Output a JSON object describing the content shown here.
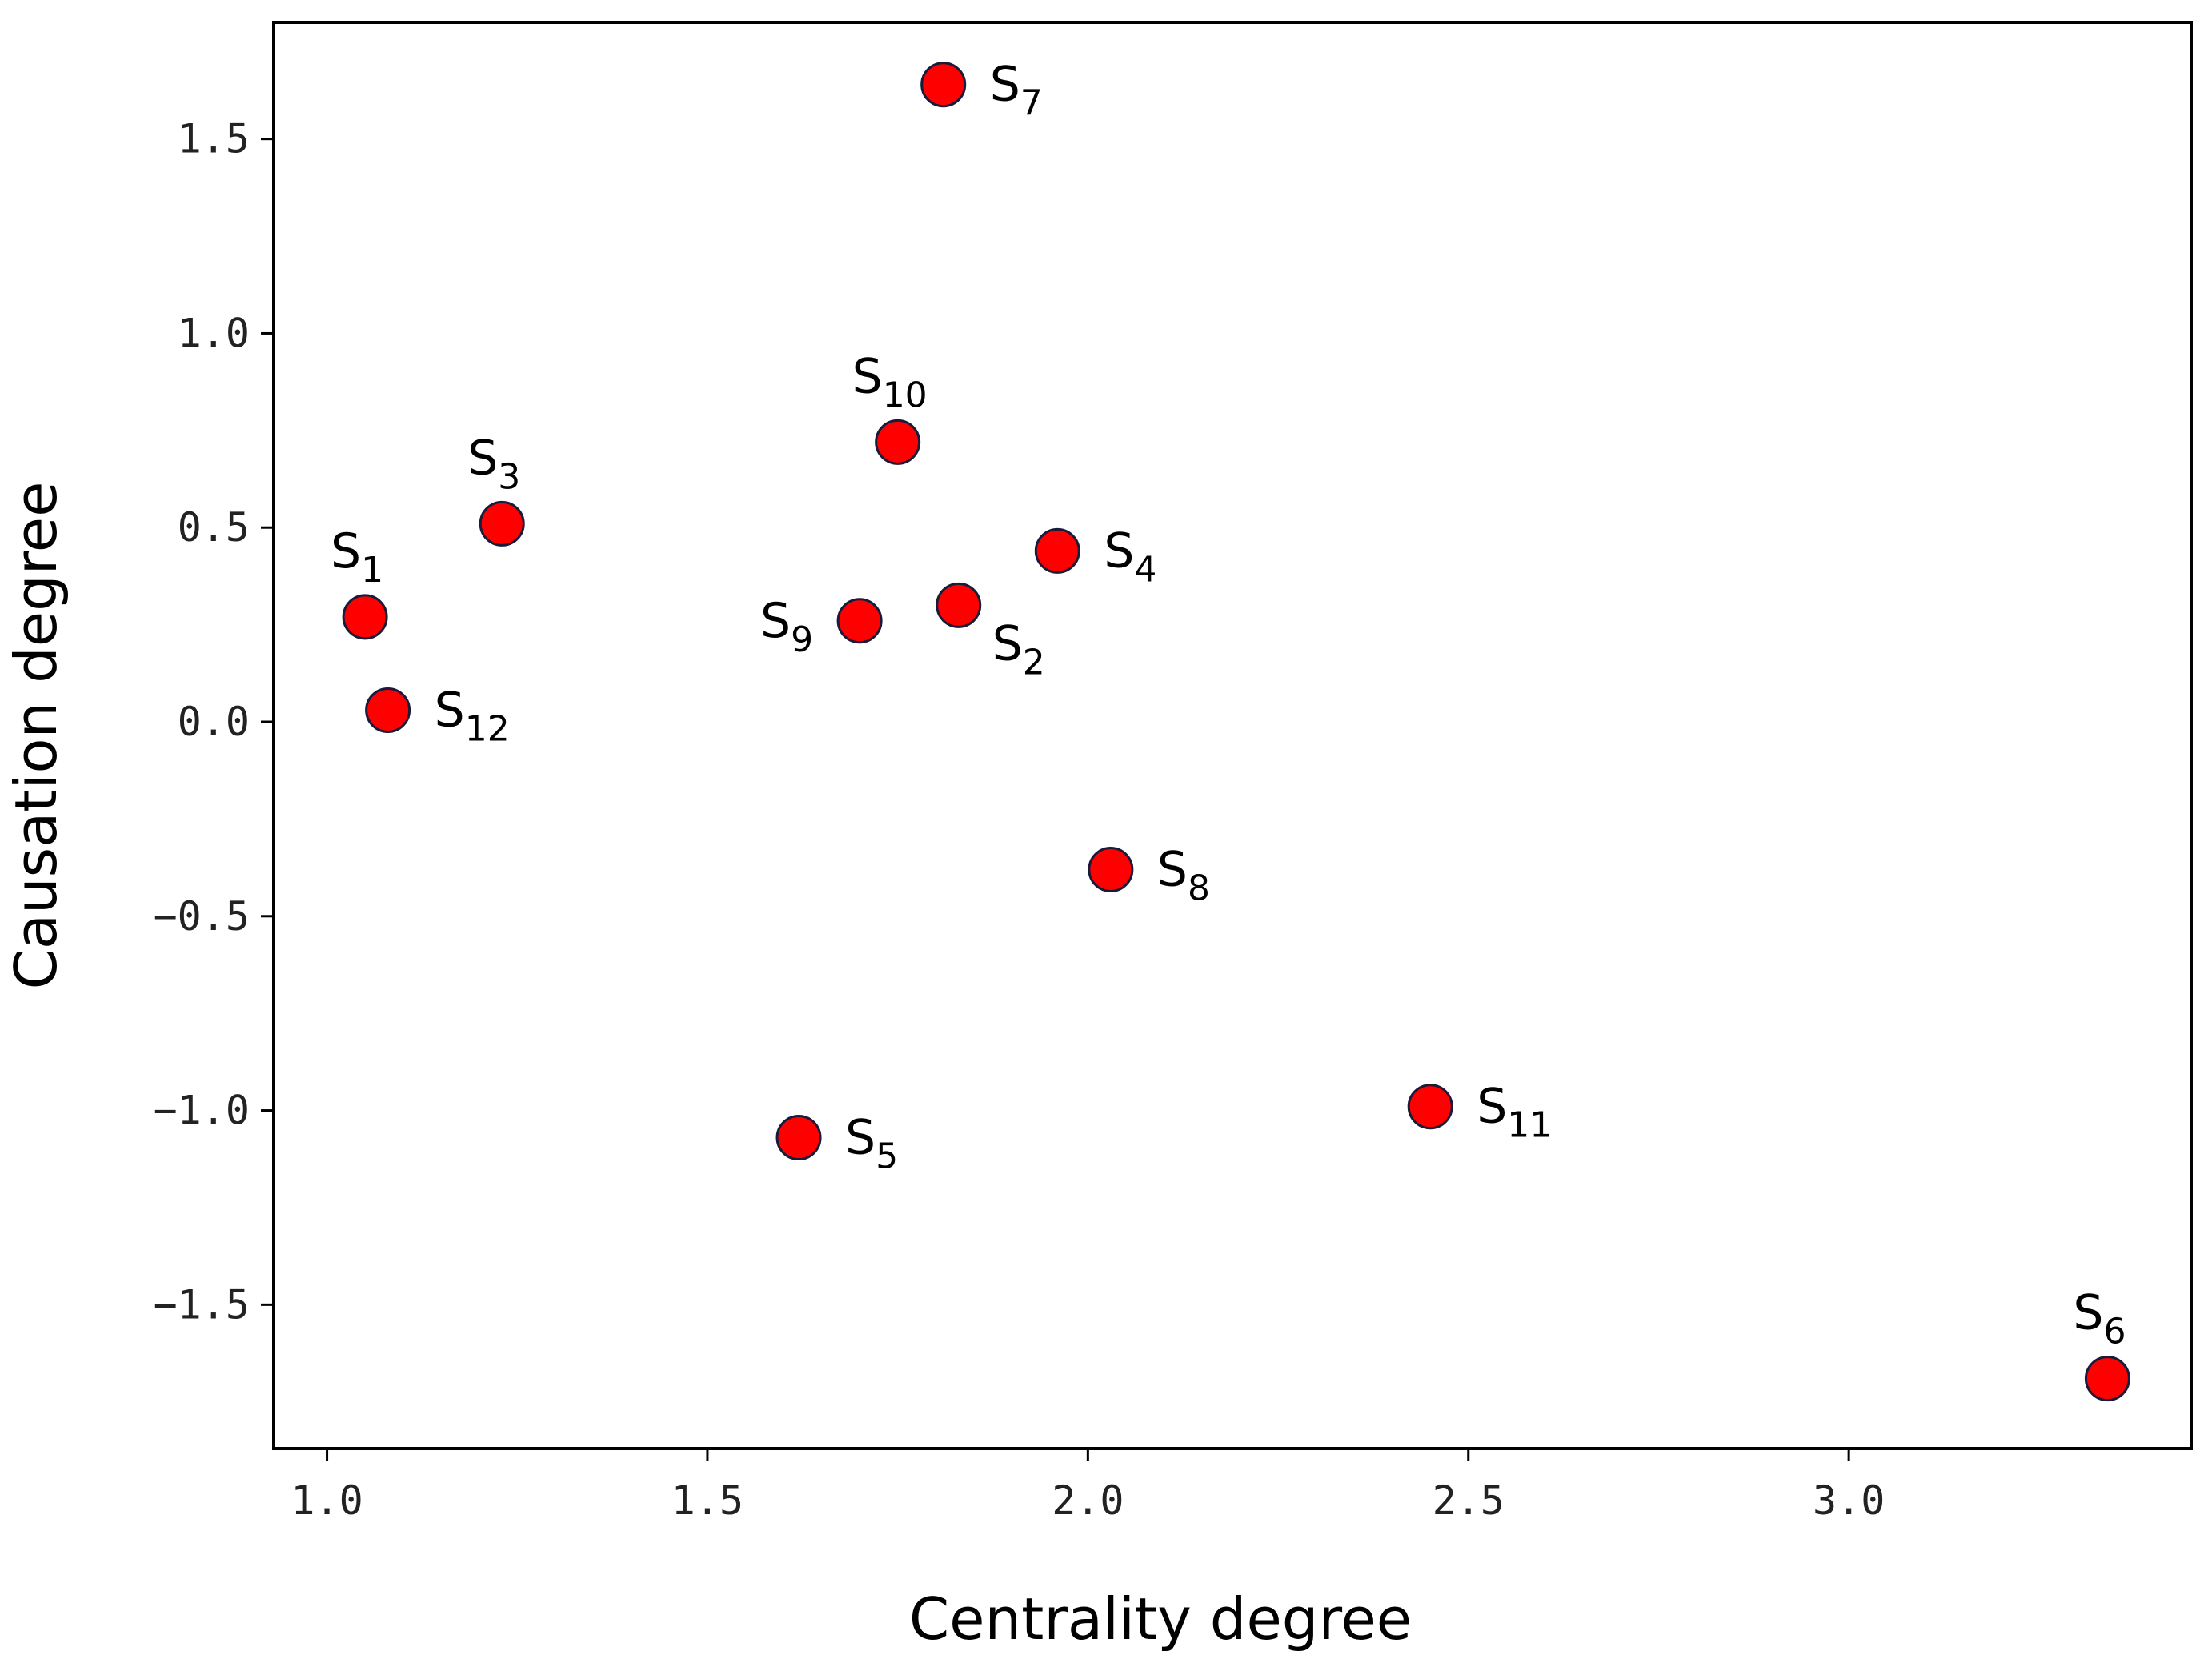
{
  "chart_data": {
    "type": "scatter",
    "xlabel": "Centrality degree",
    "ylabel": "Causation degree",
    "xlim": [
      0.93,
      3.45
    ],
    "ylim": [
      -1.87,
      1.8
    ],
    "xticks": [
      1.0,
      1.5,
      2.0,
      2.5,
      3.0
    ],
    "xtick_labels": [
      "1.0",
      "1.5",
      "2.0",
      "2.5",
      "3.0"
    ],
    "yticks": [
      1.5,
      1.0,
      0.5,
      0.0,
      -0.5,
      -1.0,
      -1.5
    ],
    "ytick_labels": [
      "1.5",
      "1.0",
      "0.5",
      "0.0",
      "−0.5",
      "−1.0",
      "−1.5"
    ],
    "grid": false,
    "legend": "none",
    "marker_color": "#ff0000",
    "marker_edge_color": "#1a1a3a",
    "points": [
      {
        "label": "S",
        "sub": "1",
        "x": 1.05,
        "y": 0.27,
        "pos": "above"
      },
      {
        "label": "S",
        "sub": "2",
        "x": 1.83,
        "y": 0.3,
        "pos": "below-right"
      },
      {
        "label": "S",
        "sub": "3",
        "x": 1.23,
        "y": 0.51,
        "pos": "above"
      },
      {
        "label": "S",
        "sub": "4",
        "x": 1.96,
        "y": 0.44,
        "pos": "right"
      },
      {
        "label": "S",
        "sub": "5",
        "x": 1.62,
        "y": -1.07,
        "pos": "right"
      },
      {
        "label": "S",
        "sub": "6",
        "x": 3.34,
        "y": -1.69,
        "pos": "above"
      },
      {
        "label": "S",
        "sub": "7",
        "x": 1.81,
        "y": 1.64,
        "pos": "right"
      },
      {
        "label": "S",
        "sub": "8",
        "x": 2.03,
        "y": -0.38,
        "pos": "right"
      },
      {
        "label": "S",
        "sub": "9",
        "x": 1.7,
        "y": 0.26,
        "pos": "left"
      },
      {
        "label": "S",
        "sub": "10",
        "x": 1.75,
        "y": 0.72,
        "pos": "above"
      },
      {
        "label": "S",
        "sub": "11",
        "x": 2.45,
        "y": -0.99,
        "pos": "right"
      },
      {
        "label": "S",
        "sub": "12",
        "x": 1.08,
        "y": 0.03,
        "pos": "right"
      }
    ]
  }
}
